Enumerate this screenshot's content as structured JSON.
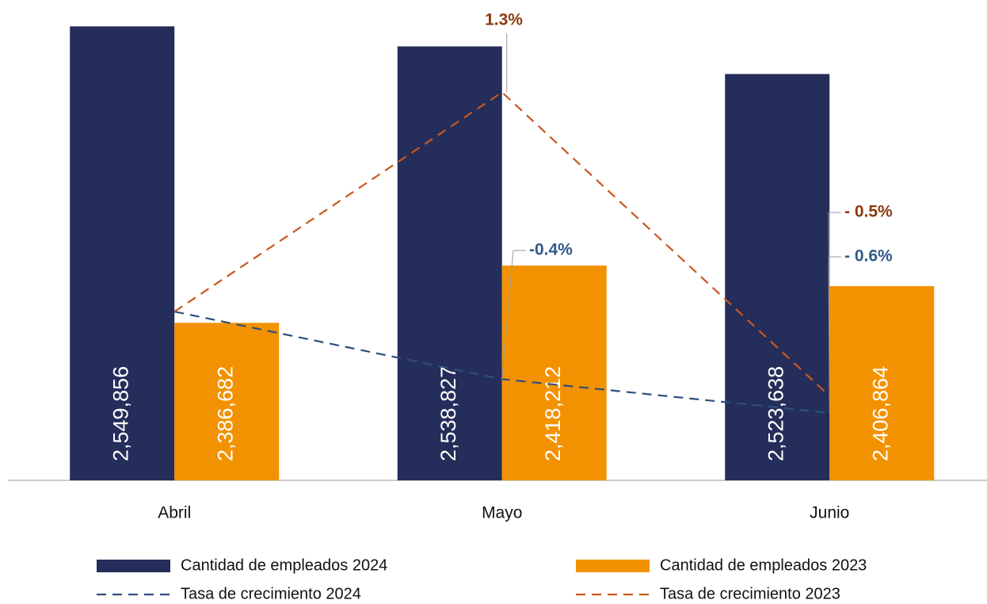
{
  "chart_data": {
    "type": "bar",
    "categories": [
      "Abril",
      "Mayo",
      "Junio"
    ],
    "ylim": [
      2300000,
      2560000
    ],
    "y2lim": [
      -1.0,
      1.8
    ],
    "series": [
      {
        "name": "Cantidad de empleados 2024",
        "type": "bar",
        "color": "#252d5a",
        "values": [
          2549856,
          2538827,
          2523638
        ],
        "value_labels": [
          "2,549,856",
          "2,538,827",
          "2,523,638"
        ]
      },
      {
        "name": "Cantidad de empleados 2023",
        "type": "bar",
        "color": "#f39200",
        "values": [
          2386682,
          2418212,
          2406864
        ],
        "value_labels": [
          "2,386,682",
          "2,418,212",
          "2,406,864"
        ]
      },
      {
        "name": "Tasa de crecimiento 2024",
        "type": "line",
        "axis": "y2",
        "color": "#2e4f7c",
        "label_color": "#2e5a87",
        "values": [
          0,
          -0.4,
          -0.6
        ],
        "value_labels": [
          null,
          "-0.4%",
          "- 0.6%"
        ]
      },
      {
        "name": "Tasa de crecimiento 2023",
        "type": "line",
        "axis": "y2",
        "color": "#c8581c",
        "label_color": "#8b3a0f",
        "values": [
          0,
          1.3,
          -0.5
        ],
        "value_labels": [
          null,
          "1.3%",
          "- 0.5%"
        ]
      }
    ]
  }
}
